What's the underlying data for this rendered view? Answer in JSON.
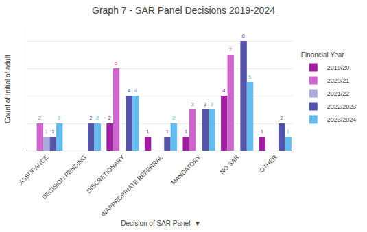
{
  "chart_data": {
    "type": "bar",
    "title": "Graph 7 - SAR Panel Decisions 2019-2024",
    "y_label": "Count of Initial of adult",
    "x_label": "Decision of SAR Panel  ▼",
    "legend_title": "Financial Year",
    "categories": [
      "ASSURANCE",
      "DECISION PENDING",
      "DISCRETIONARY",
      "INAPPROPRIATE REFERRAL",
      "MANDATORY",
      "NO SAR",
      "OTHER"
    ],
    "series": [
      {
        "name": "2019/20",
        "color": "#A020A0",
        "values": [
          0,
          0,
          2,
          1,
          1,
          4,
          1
        ],
        "value_labels": [
          null,
          null,
          "2",
          "1",
          "1",
          "4",
          "1"
        ]
      },
      {
        "name": "2020/21",
        "color": "#CC66CC",
        "values": [
          2,
          0,
          6,
          0,
          3,
          7,
          0
        ],
        "value_labels": [
          "2",
          null,
          "6",
          null,
          "3",
          "7",
          null
        ]
      },
      {
        "name": "2021/22",
        "color": "#AAAADD",
        "values": [
          1,
          0,
          0,
          0,
          0,
          0,
          0
        ],
        "value_labels": [
          "1",
          null,
          null,
          null,
          null,
          null,
          null
        ]
      },
      {
        "name": "2022/2023",
        "color": "#5555AA",
        "values": [
          1,
          2,
          4,
          1,
          3,
          8,
          2
        ],
        "value_labels": [
          "1",
          "2",
          "4",
          "1",
          "3",
          "8",
          "2"
        ]
      },
      {
        "name": "2023/2024",
        "color": "#66BBEE",
        "values": [
          2,
          2,
          4,
          2,
          3,
          5,
          1
        ],
        "value_labels": [
          "2",
          "2",
          "4",
          "2",
          "3",
          "5",
          "1"
        ]
      }
    ],
    "ylim": [
      0,
      9
    ],
    "yticks": [
      2,
      4,
      6,
      8
    ],
    "grid": true,
    "tick_labels": "x",
    "data_labels": true,
    "legend": "right"
  }
}
